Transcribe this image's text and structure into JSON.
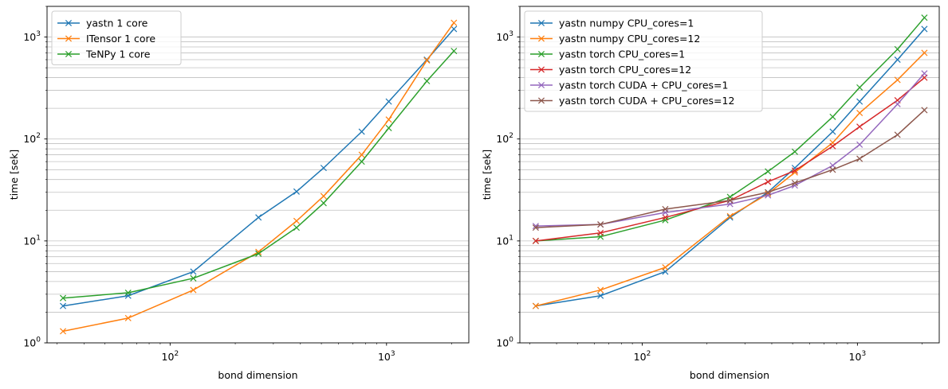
{
  "chart_data": [
    {
      "type": "line",
      "x_scale": "log",
      "y_scale": "log",
      "xlabel": "bond dimension",
      "ylabel": "time [sek]",
      "xlim": [
        27,
        2400
      ],
      "ylim": [
        1,
        2000
      ],
      "grid": "y-major-and-minor",
      "legend_position": "top-left",
      "marker": "x",
      "x_tick_labels": [
        {
          "value": 100,
          "base": "10",
          "exp": "2"
        },
        {
          "value": 1000,
          "base": "10",
          "exp": "3"
        }
      ],
      "y_tick_labels": [
        {
          "value": 1,
          "base": "10",
          "exp": "0"
        },
        {
          "value": 10,
          "base": "10",
          "exp": "1"
        },
        {
          "value": 100,
          "base": "10",
          "exp": "2"
        },
        {
          "value": 1000,
          "base": "10",
          "exp": "3"
        }
      ],
      "series": [
        {
          "name": "yastn 1 core",
          "color": "#1f77b4",
          "x": [
            32,
            64,
            128,
            256,
            384,
            512,
            768,
            1024,
            1536,
            2048
          ],
          "y": [
            2.3,
            2.9,
            5.0,
            17,
            30.5,
            52,
            118,
            233,
            600,
            1200
          ]
        },
        {
          "name": "ITensor 1 core",
          "color": "#ff7f0e",
          "x": [
            32,
            64,
            128,
            256,
            384,
            512,
            768,
            1024,
            1536,
            2048
          ],
          "y": [
            1.3,
            1.75,
            3.3,
            7.8,
            15.7,
            27.5,
            70,
            155,
            590,
            1380
          ]
        },
        {
          "name": "TeNPy 1 core",
          "color": "#2ca02c",
          "x": [
            32,
            64,
            128,
            256,
            384,
            512,
            768,
            1024,
            1536,
            2048
          ],
          "y": [
            2.75,
            3.1,
            4.3,
            7.5,
            13.5,
            23.5,
            60,
            128,
            370,
            730
          ]
        }
      ]
    },
    {
      "type": "line",
      "x_scale": "log",
      "y_scale": "log",
      "xlabel": "bond dimension",
      "ylabel": "time [sek]",
      "xlim": [
        27,
        2400
      ],
      "ylim": [
        1,
        2000
      ],
      "grid": "y-major-and-minor",
      "legend_position": "top-left",
      "marker": "x",
      "x_tick_labels": [
        {
          "value": 100,
          "base": "10",
          "exp": "2"
        },
        {
          "value": 1000,
          "base": "10",
          "exp": "3"
        }
      ],
      "y_tick_labels": [
        {
          "value": 1,
          "base": "10",
          "exp": "0"
        },
        {
          "value": 10,
          "base": "10",
          "exp": "1"
        },
        {
          "value": 100,
          "base": "10",
          "exp": "2"
        },
        {
          "value": 1000,
          "base": "10",
          "exp": "3"
        }
      ],
      "series": [
        {
          "name": "yastn numpy CPU_cores=1",
          "color": "#1f77b4",
          "x": [
            32,
            64,
            128,
            256,
            384,
            512,
            768,
            1024,
            1536,
            2048
          ],
          "y": [
            2.3,
            2.9,
            5.0,
            17,
            30,
            52,
            118,
            233,
            600,
            1200
          ]
        },
        {
          "name": "yastn numpy CPU_cores=12",
          "color": "#ff7f0e",
          "x": [
            32,
            64,
            128,
            256,
            384,
            512,
            768,
            1024,
            1536,
            2048
          ],
          "y": [
            2.3,
            3.3,
            5.5,
            17.5,
            29,
            47,
            92,
            180,
            380,
            700
          ]
        },
        {
          "name": "yastn torch CPU_cores=1",
          "color": "#2ca02c",
          "x": [
            32,
            64,
            128,
            256,
            384,
            512,
            768,
            1024,
            1536,
            2048
          ],
          "y": [
            10,
            11,
            16,
            27,
            48,
            75,
            165,
            320,
            760,
            1550
          ]
        },
        {
          "name": "yastn torch CPU_cores=12",
          "color": "#d62728",
          "x": [
            32,
            64,
            128,
            256,
            384,
            512,
            768,
            1024,
            1536,
            2048
          ],
          "y": [
            10,
            12,
            17,
            25,
            38,
            49,
            85,
            132,
            240,
            400
          ]
        },
        {
          "name": "yastn torch CUDA + CPU_cores=1",
          "color": "#9467bd",
          "x": [
            32,
            64,
            128,
            256,
            384,
            512,
            768,
            1024,
            1536,
            2048
          ],
          "y": [
            14,
            14.5,
            19,
            23,
            28,
            35,
            55,
            88,
            220,
            440
          ]
        },
        {
          "name": "yastn torch CUDA + CPU_cores=12",
          "color": "#8c564b",
          "x": [
            32,
            64,
            128,
            256,
            384,
            512,
            768,
            1024,
            1536,
            2048
          ],
          "y": [
            13.5,
            14.5,
            20.5,
            25,
            30,
            37,
            50,
            64,
            110,
            192
          ]
        }
      ]
    }
  ]
}
